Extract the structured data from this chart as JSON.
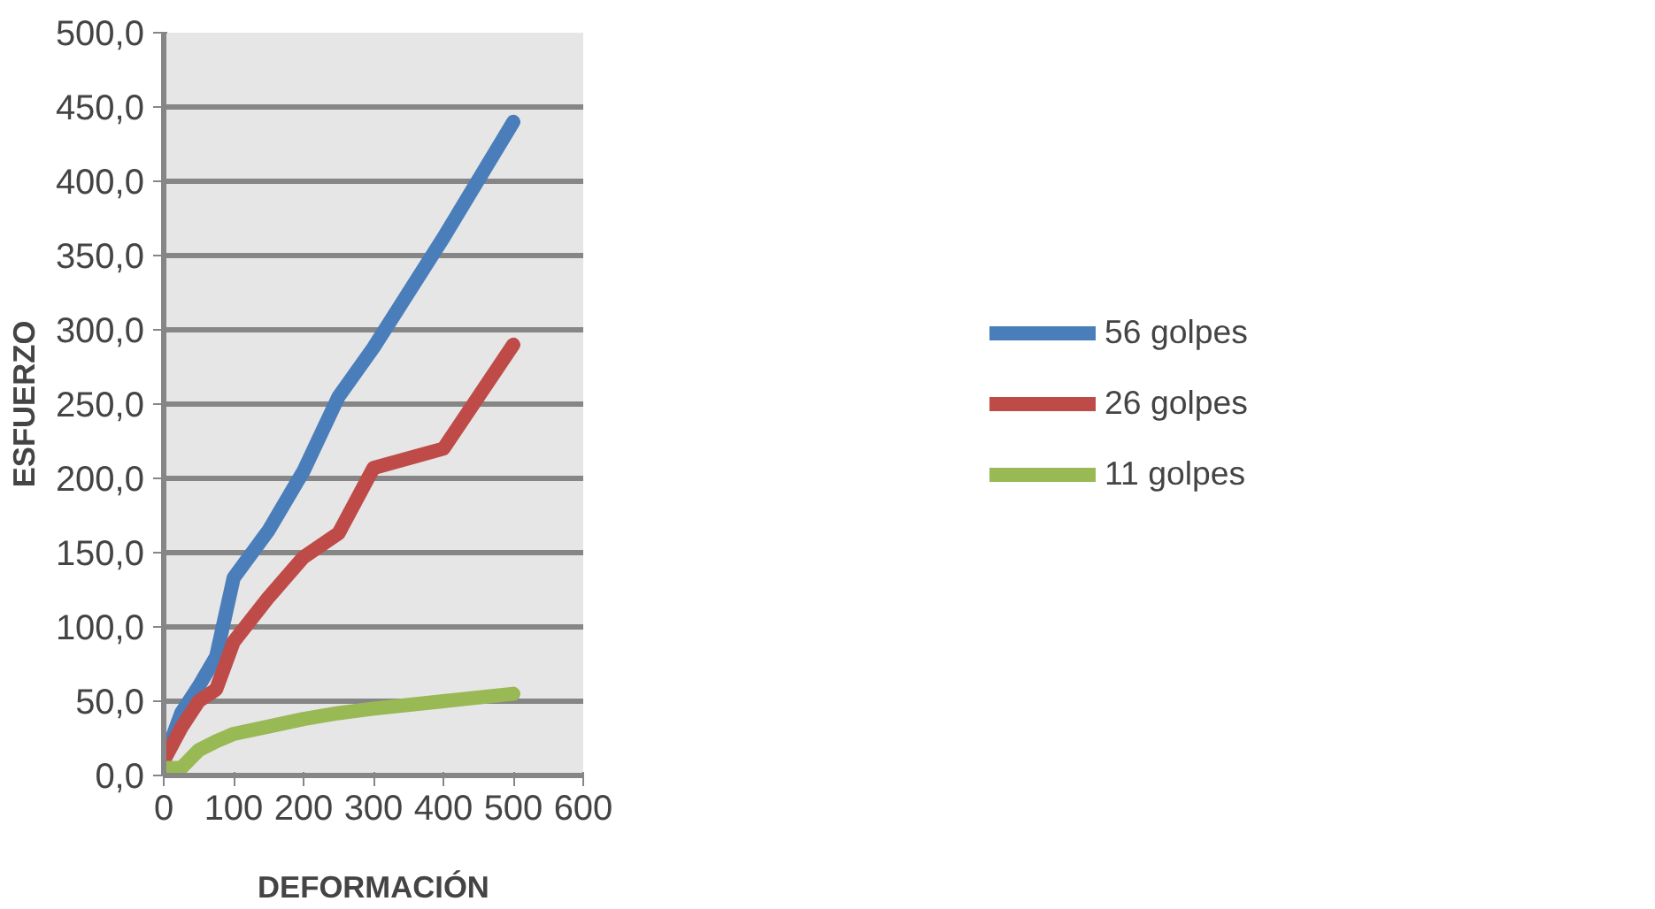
{
  "chart_data": {
    "type": "line",
    "xlabel": "DEFORMACIÓN",
    "ylabel": "ESFUERZO",
    "x": [
      0,
      25,
      50,
      75,
      100,
      150,
      200,
      250,
      300,
      400,
      500
    ],
    "series": [
      {
        "name": "56 golpes",
        "color": "#4a7ebb",
        "values": [
          10,
          42,
          60,
          80,
          133,
          165,
          205,
          255,
          288,
          362,
          440
        ]
      },
      {
        "name": "26 golpes",
        "color": "#be4b48",
        "values": [
          10,
          32,
          50,
          58,
          90,
          120,
          147,
          163,
          207,
          220,
          290
        ]
      },
      {
        "name": "11 golpes",
        "color": "#98b954",
        "values": [
          5,
          5,
          17,
          23,
          28,
          33,
          38,
          42,
          45,
          50,
          55
        ]
      }
    ],
    "xlim": [
      0,
      600
    ],
    "xticks": [
      0,
      100,
      200,
      300,
      400,
      500,
      600
    ],
    "ylim": [
      0,
      500
    ],
    "yticks": [
      {
        "value": 0,
        "label": "0,0"
      },
      {
        "value": 50,
        "label": "50,0"
      },
      {
        "value": 100,
        "label": "100,0"
      },
      {
        "value": 150,
        "label": "150,0"
      },
      {
        "value": 200,
        "label": "200,0"
      },
      {
        "value": 250,
        "label": "250,0"
      },
      {
        "value": 300,
        "label": "300,0"
      },
      {
        "value": 350,
        "label": "350,0"
      },
      {
        "value": 400,
        "label": "400,0"
      },
      {
        "value": 450,
        "label": "450,0"
      },
      {
        "value": 500,
        "label": "500,0"
      }
    ],
    "grid": "y",
    "legend": "right",
    "marker": "none",
    "line_style": "solid"
  }
}
